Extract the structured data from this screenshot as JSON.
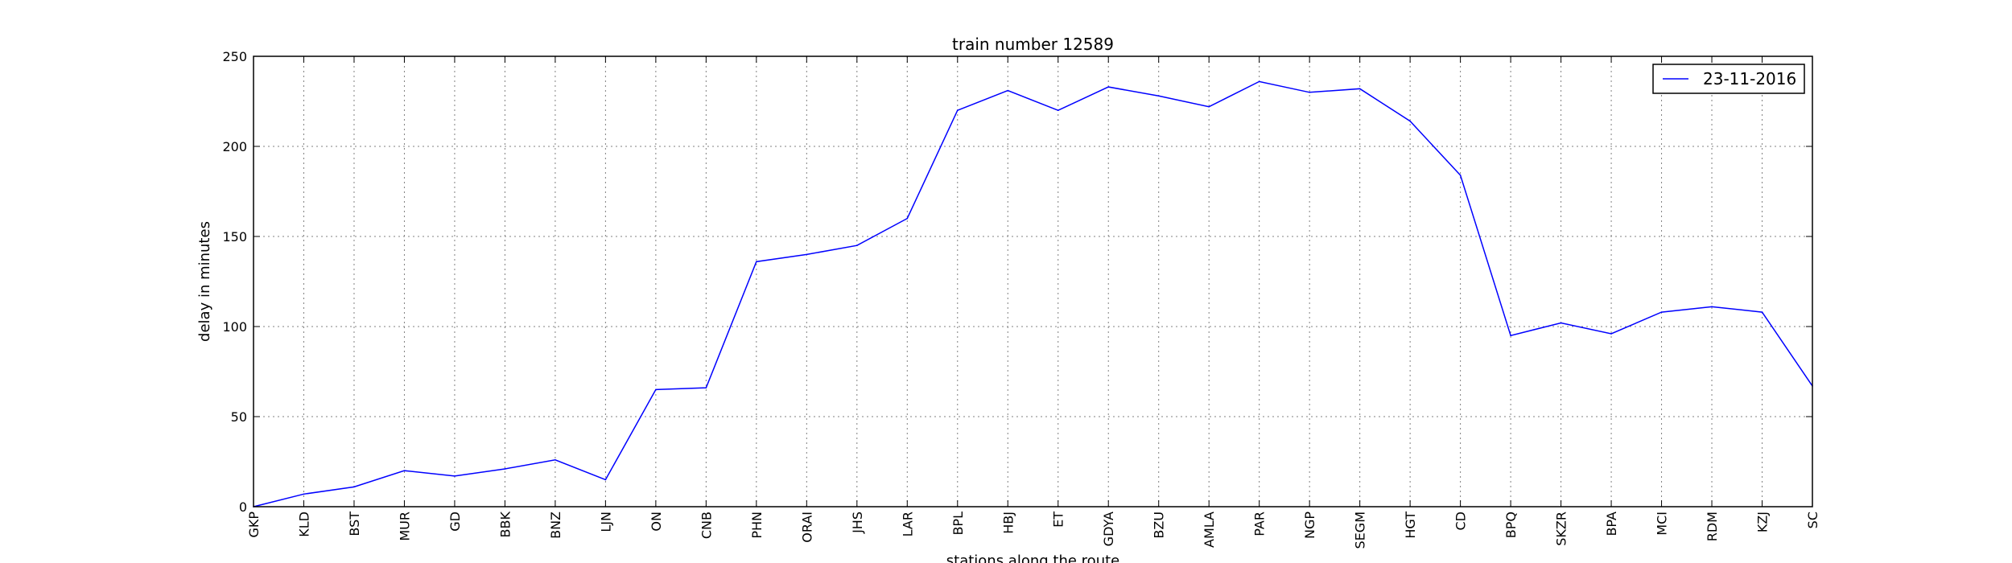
{
  "chart_data": {
    "type": "line",
    "title": "train number 12589",
    "xlabel": "stations along the route",
    "ylabel": "delay in minutes",
    "ylim": [
      0,
      250
    ],
    "yticks": [
      "0",
      "50",
      "100",
      "150",
      "200",
      "250"
    ],
    "grid": true,
    "legend_position": "top-right",
    "categories": [
      "GKP",
      "KLD",
      "BST",
      "MUR",
      "GD",
      "BBK",
      "BNZ",
      "LJN",
      "ON",
      "CNB",
      "PHN",
      "ORAI",
      "JHS",
      "LAR",
      "BPL",
      "HBJ",
      "ET",
      "GDYA",
      "BZU",
      "AMLA",
      "PAR",
      "NGP",
      "SEGM",
      "HGT",
      "CD",
      "BPQ",
      "SKZR",
      "BPA",
      "MCI",
      "RDM",
      "KZJ",
      "SC"
    ],
    "series": [
      {
        "name": "23-11-2016",
        "color": "#0000ff",
        "values": [
          0,
          7,
          11,
          20,
          17,
          21,
          26,
          15,
          65,
          66,
          136,
          140,
          145,
          160,
          220,
          231,
          220,
          233,
          228,
          222,
          236,
          230,
          232,
          214,
          184,
          95,
          102,
          96,
          108,
          111,
          108,
          67
        ]
      }
    ]
  }
}
